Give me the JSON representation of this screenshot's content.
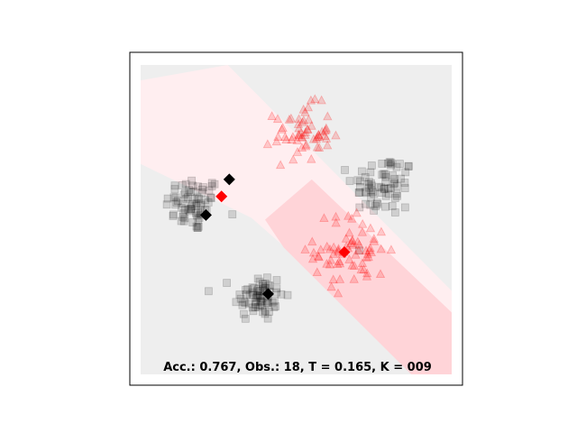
{
  "chart_data": {
    "type": "scatter",
    "title": "",
    "xlabel": "",
    "ylabel": "",
    "xlim": [
      0,
      1
    ],
    "ylim": [
      0,
      1
    ],
    "grid": false,
    "annotation": "Acc.: 0.767, Obs.: 18, T = 0.165, K = 009",
    "colors": {
      "class_a": "#000000",
      "class_b": "#ff0000",
      "region_a_light": "#eeeeee",
      "region_b_light": "#ffeef0",
      "region_b_strong": "#ffd4d8"
    },
    "clusters": [
      {
        "name": "black squares upper-left",
        "class": "a",
        "marker": "square",
        "center": [
          0.17,
          0.55
        ],
        "spread": 0.045,
        "count": 70
      },
      {
        "name": "black squares lower-middle",
        "class": "a",
        "marker": "square",
        "center": [
          0.38,
          0.25
        ],
        "spread": 0.04,
        "count": 70
      },
      {
        "name": "black squares right",
        "class": "a",
        "marker": "square",
        "center": [
          0.78,
          0.61
        ],
        "spread": 0.05,
        "count": 70
      },
      {
        "name": "red triangles top",
        "class": "b",
        "marker": "triangle",
        "center": [
          0.52,
          0.78
        ],
        "spread": 0.045,
        "count": 60
      },
      {
        "name": "red triangles center",
        "class": "b",
        "marker": "triangle",
        "center": [
          0.68,
          0.4
        ],
        "spread": 0.06,
        "count": 70
      }
    ],
    "observations": [
      {
        "class": "a",
        "x": 0.285,
        "y": 0.63
      },
      {
        "class": "a",
        "x": 0.21,
        "y": 0.515
      },
      {
        "class": "a",
        "x": 0.41,
        "y": 0.26
      },
      {
        "class": "b",
        "x": 0.26,
        "y": 0.575
      },
      {
        "class": "b",
        "x": 0.655,
        "y": 0.395
      }
    ]
  }
}
